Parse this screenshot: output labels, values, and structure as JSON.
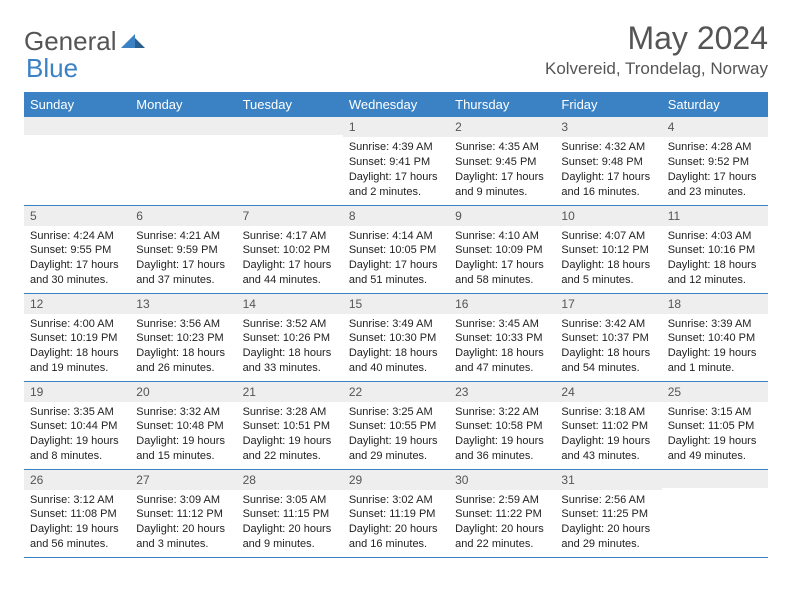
{
  "brand": {
    "part1": "General",
    "part2": "Blue"
  },
  "title": "May 2024",
  "location": "Kolvereid, Trondelag, Norway",
  "colors": {
    "header_bg": "#3b82c4",
    "header_text": "#ffffff",
    "band_bg": "#eeeeee",
    "text": "#222222",
    "muted": "#555555",
    "rule": "#3b82c4"
  },
  "weekdays": [
    "Sunday",
    "Monday",
    "Tuesday",
    "Wednesday",
    "Thursday",
    "Friday",
    "Saturday"
  ],
  "weeks": [
    [
      {
        "n": "",
        "sunrise": "",
        "sunset": "",
        "daylight": ""
      },
      {
        "n": "",
        "sunrise": "",
        "sunset": "",
        "daylight": ""
      },
      {
        "n": "",
        "sunrise": "",
        "sunset": "",
        "daylight": ""
      },
      {
        "n": "1",
        "sunrise": "4:39 AM",
        "sunset": "9:41 PM",
        "daylight": "17 hours and 2 minutes."
      },
      {
        "n": "2",
        "sunrise": "4:35 AM",
        "sunset": "9:45 PM",
        "daylight": "17 hours and 9 minutes."
      },
      {
        "n": "3",
        "sunrise": "4:32 AM",
        "sunset": "9:48 PM",
        "daylight": "17 hours and 16 minutes."
      },
      {
        "n": "4",
        "sunrise": "4:28 AM",
        "sunset": "9:52 PM",
        "daylight": "17 hours and 23 minutes."
      }
    ],
    [
      {
        "n": "5",
        "sunrise": "4:24 AM",
        "sunset": "9:55 PM",
        "daylight": "17 hours and 30 minutes."
      },
      {
        "n": "6",
        "sunrise": "4:21 AM",
        "sunset": "9:59 PM",
        "daylight": "17 hours and 37 minutes."
      },
      {
        "n": "7",
        "sunrise": "4:17 AM",
        "sunset": "10:02 PM",
        "daylight": "17 hours and 44 minutes."
      },
      {
        "n": "8",
        "sunrise": "4:14 AM",
        "sunset": "10:05 PM",
        "daylight": "17 hours and 51 minutes."
      },
      {
        "n": "9",
        "sunrise": "4:10 AM",
        "sunset": "10:09 PM",
        "daylight": "17 hours and 58 minutes."
      },
      {
        "n": "10",
        "sunrise": "4:07 AM",
        "sunset": "10:12 PM",
        "daylight": "18 hours and 5 minutes."
      },
      {
        "n": "11",
        "sunrise": "4:03 AM",
        "sunset": "10:16 PM",
        "daylight": "18 hours and 12 minutes."
      }
    ],
    [
      {
        "n": "12",
        "sunrise": "4:00 AM",
        "sunset": "10:19 PM",
        "daylight": "18 hours and 19 minutes."
      },
      {
        "n": "13",
        "sunrise": "3:56 AM",
        "sunset": "10:23 PM",
        "daylight": "18 hours and 26 minutes."
      },
      {
        "n": "14",
        "sunrise": "3:52 AM",
        "sunset": "10:26 PM",
        "daylight": "18 hours and 33 minutes."
      },
      {
        "n": "15",
        "sunrise": "3:49 AM",
        "sunset": "10:30 PM",
        "daylight": "18 hours and 40 minutes."
      },
      {
        "n": "16",
        "sunrise": "3:45 AM",
        "sunset": "10:33 PM",
        "daylight": "18 hours and 47 minutes."
      },
      {
        "n": "17",
        "sunrise": "3:42 AM",
        "sunset": "10:37 PM",
        "daylight": "18 hours and 54 minutes."
      },
      {
        "n": "18",
        "sunrise": "3:39 AM",
        "sunset": "10:40 PM",
        "daylight": "19 hours and 1 minute."
      }
    ],
    [
      {
        "n": "19",
        "sunrise": "3:35 AM",
        "sunset": "10:44 PM",
        "daylight": "19 hours and 8 minutes."
      },
      {
        "n": "20",
        "sunrise": "3:32 AM",
        "sunset": "10:48 PM",
        "daylight": "19 hours and 15 minutes."
      },
      {
        "n": "21",
        "sunrise": "3:28 AM",
        "sunset": "10:51 PM",
        "daylight": "19 hours and 22 minutes."
      },
      {
        "n": "22",
        "sunrise": "3:25 AM",
        "sunset": "10:55 PM",
        "daylight": "19 hours and 29 minutes."
      },
      {
        "n": "23",
        "sunrise": "3:22 AM",
        "sunset": "10:58 PM",
        "daylight": "19 hours and 36 minutes."
      },
      {
        "n": "24",
        "sunrise": "3:18 AM",
        "sunset": "11:02 PM",
        "daylight": "19 hours and 43 minutes."
      },
      {
        "n": "25",
        "sunrise": "3:15 AM",
        "sunset": "11:05 PM",
        "daylight": "19 hours and 49 minutes."
      }
    ],
    [
      {
        "n": "26",
        "sunrise": "3:12 AM",
        "sunset": "11:08 PM",
        "daylight": "19 hours and 56 minutes."
      },
      {
        "n": "27",
        "sunrise": "3:09 AM",
        "sunset": "11:12 PM",
        "daylight": "20 hours and 3 minutes."
      },
      {
        "n": "28",
        "sunrise": "3:05 AM",
        "sunset": "11:15 PM",
        "daylight": "20 hours and 9 minutes."
      },
      {
        "n": "29",
        "sunrise": "3:02 AM",
        "sunset": "11:19 PM",
        "daylight": "20 hours and 16 minutes."
      },
      {
        "n": "30",
        "sunrise": "2:59 AM",
        "sunset": "11:22 PM",
        "daylight": "20 hours and 22 minutes."
      },
      {
        "n": "31",
        "sunrise": "2:56 AM",
        "sunset": "11:25 PM",
        "daylight": "20 hours and 29 minutes."
      },
      {
        "n": "",
        "sunrise": "",
        "sunset": "",
        "daylight": ""
      }
    ]
  ],
  "labels": {
    "sunrise": "Sunrise:",
    "sunset": "Sunset:",
    "daylight": "Daylight:"
  }
}
